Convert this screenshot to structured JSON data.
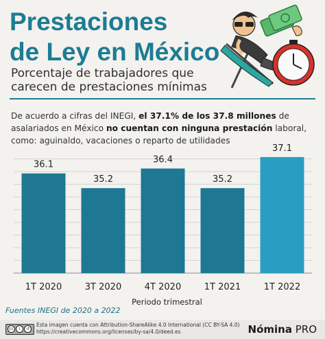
{
  "header": {
    "title_line1": "Prestaciones",
    "title_line2": "de Ley en México",
    "subtitle_line1": "Porcentaje de trabajadores que",
    "subtitle_line2": "carecen de prestaciones mínimas"
  },
  "intro": {
    "part1": "De acuerdo a cifras del INEGI, ",
    "bold1": "el 37.1% de los 37.8 millones",
    "part2": " de asalariados en México ",
    "bold2": "no cuentan con ninguna prestación",
    "part3": " laboral, como: aguinaldo, vacaciones o reparto de utilidades"
  },
  "chart_data": {
    "type": "bar",
    "categories": [
      "1T 2020",
      "3T 2020",
      "4T 2020",
      "1T 2021",
      "1T 2022"
    ],
    "values": [
      36.1,
      35.2,
      36.4,
      35.2,
      37.1
    ],
    "data_labels": [
      "36.1",
      "35.2",
      "36.4",
      "35.2",
      "37.1"
    ],
    "xlabel": "Periodo trimestral",
    "ylabel": "",
    "ylim": [
      30,
      37.6
    ],
    "grid": true,
    "bar_color": "#1e7893",
    "highlight_color": "#2a9dc3",
    "highlight_index": 4
  },
  "source": "Fuentes INEGI de 2020 a 2022",
  "footer": {
    "license_line1": "Esta imagen cuenta con Attribution-ShareAlike 4.0 International (CC BY-SA 4.0)",
    "license_line2": "https://creativecommons.org/licenses/by-sa/4.0/deed.es",
    "brand_bold": "Nómina",
    "brand_regular": " PRO"
  },
  "illustration": {
    "icons": [
      "money-icon",
      "clock-icon",
      "person-relaxing-icon",
      "beach-chair-icon"
    ]
  }
}
